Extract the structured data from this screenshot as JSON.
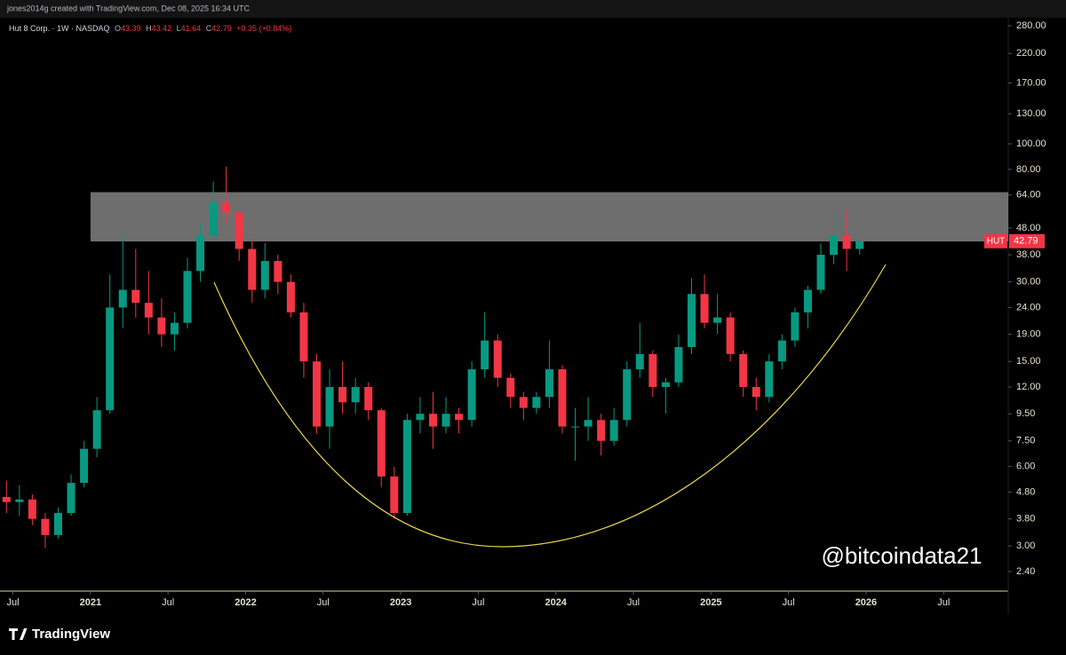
{
  "header": "jones2014g created with TradingView.com, Dec 08, 2025 16:34 UTC",
  "footer_brand": "TradingView",
  "chart_data": {
    "type": "candlestick",
    "legend": {
      "title": "Hut 8 Corp. · 1W · NASDAQ",
      "items": [
        {
          "label": "O",
          "value": 43.39
        },
        {
          "label": "H",
          "value": 43.42
        },
        {
          "label": "L",
          "value": 41.64
        },
        {
          "label": "C",
          "value": 42.79
        }
      ],
      "change": "+0.35 (+0.84%)"
    },
    "watermark": "@bitcoindata21",
    "log_scale": true,
    "up_color": "#089981",
    "down_color": "#f23645",
    "x": [
      "2020-06",
      "2020-07",
      "2020-08",
      "2020-09",
      "2020-10",
      "2020-11",
      "2020-12",
      "2021-01",
      "2021-02",
      "2021-03",
      "2021-04",
      "2021-05",
      "2021-06",
      "2021-07",
      "2021-08",
      "2021-09",
      "2021-10",
      "2021-11",
      "2021-12",
      "2022-01",
      "2022-02",
      "2022-03",
      "2022-04",
      "2022-05",
      "2022-06",
      "2022-07",
      "2022-08",
      "2022-09",
      "2022-10",
      "2022-11",
      "2022-12",
      "2023-01",
      "2023-02",
      "2023-03",
      "2023-04",
      "2023-05",
      "2023-06",
      "2023-07",
      "2023-08",
      "2023-09",
      "2023-10",
      "2023-11",
      "2023-12",
      "2024-01",
      "2024-02",
      "2024-03",
      "2024-04",
      "2024-05",
      "2024-06",
      "2024-07",
      "2024-08",
      "2024-09",
      "2024-10",
      "2024-11",
      "2024-12",
      "2025-01",
      "2025-02",
      "2025-03",
      "2025-04",
      "2025-05",
      "2025-06",
      "2025-07",
      "2025-08",
      "2025-09",
      "2025-10",
      "2025-11",
      "2025-12"
    ],
    "open": [
      4.6,
      4.4,
      4.5,
      3.8,
      3.3,
      4.0,
      5.2,
      7.0,
      9.8,
      24,
      28,
      25,
      22,
      19,
      21,
      33,
      45,
      60,
      55,
      40,
      28,
      36,
      30,
      23,
      15,
      8.5,
      12,
      10.5,
      12,
      9.8,
      5.5,
      4.0,
      9,
      9.5,
      8.5,
      9.5,
      9,
      14,
      18,
      13,
      11,
      10,
      11,
      14,
      8.5,
      8.5,
      9,
      7.5,
      9,
      14,
      16,
      12,
      12.5,
      17,
      27,
      21,
      22,
      16,
      12,
      11,
      15,
      18,
      23,
      28,
      38,
      45,
      40
    ],
    "high": [
      5.3,
      5.1,
      4.7,
      4.0,
      4.2,
      5.6,
      7.5,
      11,
      32,
      45,
      40,
      33,
      26,
      23,
      37,
      50,
      72,
      82,
      58,
      44,
      42,
      38,
      32,
      25,
      16,
      14,
      15,
      13,
      12.5,
      10,
      6,
      9.5,
      11,
      11.5,
      11,
      10,
      15,
      23,
      19,
      13.5,
      11.5,
      11.5,
      18,
      14.5,
      10,
      11,
      9.5,
      10,
      15,
      21,
      16.5,
      13,
      19,
      31,
      32,
      27,
      23,
      16.5,
      13,
      16,
      19,
      24,
      29,
      42,
      58,
      56,
      43.42
    ],
    "low": [
      4.0,
      3.9,
      3.6,
      2.95,
      3.2,
      3.9,
      5.0,
      6.5,
      9.5,
      20,
      22,
      19,
      17,
      16.5,
      20,
      30,
      43,
      50,
      36,
      25,
      26,
      27,
      22,
      13,
      8,
      7,
      9.5,
      9.5,
      9,
      5,
      3.8,
      3.9,
      8,
      7,
      8,
      8,
      8.5,
      13,
      12,
      10,
      9,
      9.5,
      10,
      8,
      6.3,
      7.5,
      6.6,
      7.2,
      8.5,
      13,
      11,
      9.5,
      12,
      16,
      20,
      19,
      15,
      11,
      9.8,
      10.5,
      14,
      17,
      20,
      27,
      35,
      33,
      38
    ],
    "close": [
      4.4,
      4.5,
      3.8,
      3.3,
      4.0,
      5.2,
      7.0,
      9.8,
      24,
      28,
      25,
      22,
      19,
      21,
      33,
      45,
      60,
      55,
      40,
      28,
      36,
      30,
      23,
      15,
      8.5,
      12,
      10.5,
      12,
      9.8,
      5.5,
      4.0,
      9,
      9.5,
      8.5,
      9.5,
      9,
      14,
      18,
      13,
      11,
      10,
      11,
      14,
      8.5,
      8.5,
      9,
      7.5,
      9,
      14,
      16,
      12,
      12.5,
      17,
      27,
      21,
      22,
      16,
      12,
      11,
      15,
      18,
      23,
      28,
      38,
      45,
      40,
      42.79
    ],
    "xlim": [
      "2020-06",
      "2026-12"
    ],
    "xticks": [
      {
        "value": "2020-07",
        "label": "Jul"
      },
      {
        "value": "2021-01",
        "label": "2021"
      },
      {
        "value": "2021-07",
        "label": "Jul"
      },
      {
        "value": "2022-01",
        "label": "2022"
      },
      {
        "value": "2022-07",
        "label": "Jul"
      },
      {
        "value": "2023-01",
        "label": "2023"
      },
      {
        "value": "2023-07",
        "label": "Jul"
      },
      {
        "value": "2024-01",
        "label": "2024"
      },
      {
        "value": "2024-07",
        "label": "Jul"
      },
      {
        "value": "2025-01",
        "label": "2025"
      },
      {
        "value": "2025-07",
        "label": "Jul"
      },
      {
        "value": "2026-01",
        "label": "2026"
      },
      {
        "value": "2026-07",
        "label": "Jul"
      }
    ],
    "ylim": [
      2.04,
      295.6
    ],
    "yticks": [
      {
        "value": 280,
        "label": "280.00"
      },
      {
        "value": 220,
        "label": "220.00"
      },
      {
        "value": 170,
        "label": "170.00"
      },
      {
        "value": 130,
        "label": "130.00"
      },
      {
        "value": 100,
        "label": "100.00"
      },
      {
        "value": 80,
        "label": "80.00"
      },
      {
        "value": 64,
        "label": "64.00"
      },
      {
        "value": 48,
        "label": "48.00"
      },
      {
        "value": 38,
        "label": "38.00"
      },
      {
        "value": 30,
        "label": "30.00"
      },
      {
        "value": 24,
        "label": "24.00"
      },
      {
        "value": 19,
        "label": "19.00"
      },
      {
        "value": 15,
        "label": "15.00"
      },
      {
        "value": 12,
        "label": "12.00"
      },
      {
        "value": 9.5,
        "label": "9.50"
      },
      {
        "value": 7.5,
        "label": "7.50"
      },
      {
        "value": 6,
        "label": "6.00"
      },
      {
        "value": 4.8,
        "label": "4.80"
      },
      {
        "value": 3.8,
        "label": "3.80"
      },
      {
        "value": 3,
        "label": "3.00"
      },
      {
        "value": 2.4,
        "label": "2.40"
      }
    ],
    "zone": {
      "start": "2021-01",
      "low": 42.7,
      "high": 65.6,
      "color": "#8a8a8a"
    },
    "last_price": {
      "symbol": "HUT",
      "price": 42.79,
      "color": "#f23645"
    }
  }
}
